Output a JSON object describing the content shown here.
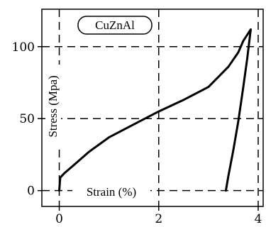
{
  "chart_data": {
    "type": "line",
    "title": "CuZnAl",
    "xlabel": "Strain (%)",
    "ylabel": "Stress (Mpa)",
    "xlim": [
      -0.35,
      4.1
    ],
    "ylim": [
      -11,
      126
    ],
    "x_ticks": [
      0,
      2,
      4
    ],
    "y_ticks": [
      0,
      50,
      100
    ],
    "x_tick_labels": [
      "0",
      "2",
      "4"
    ],
    "y_tick_labels": [
      "0",
      "50",
      "100"
    ],
    "grid": true,
    "series": [
      {
        "color": "#000000",
        "x": [
          0.0,
          0.02,
          0.1,
          0.3,
          0.6,
          1.0,
          1.5,
          2.0,
          2.5,
          3.0,
          3.4,
          3.6,
          3.7,
          3.85,
          3.78,
          3.7,
          3.6,
          3.5,
          3.4,
          3.35
        ],
        "y": [
          0.0,
          9.0,
          12.0,
          18.0,
          27.0,
          37.0,
          46.0,
          55.0,
          63.0,
          72.0,
          86.0,
          96.0,
          104.0,
          112.0,
          92.0,
          72.0,
          48.0,
          28.0,
          10.0,
          0.0
        ]
      }
    ]
  }
}
